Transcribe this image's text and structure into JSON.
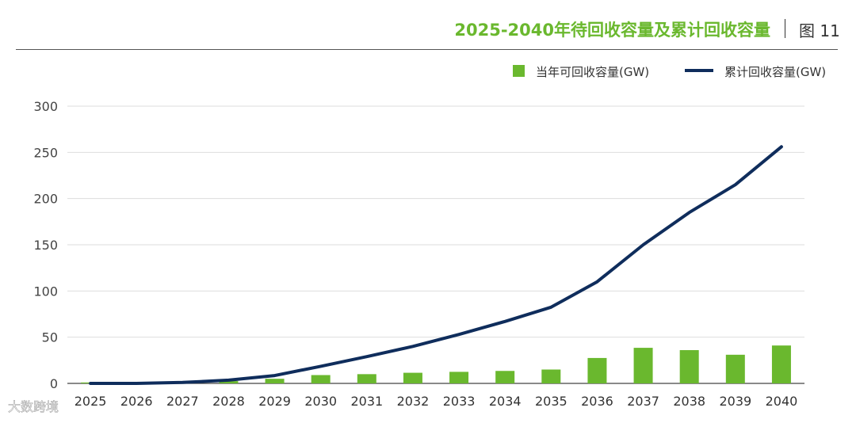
{
  "header": {
    "title": "2025-2040年待回收容量及累计回收容量",
    "figure_label": "图 11"
  },
  "watermark": {
    "text": "大数跨境"
  },
  "colors": {
    "bar": "#6ab82e",
    "line": "#0f2d5c",
    "title": "#6ab82e"
  },
  "chart_data": {
    "type": "bar",
    "title": "2025-2040年待回收容量及累计回收容量",
    "categories": [
      "2025",
      "2026",
      "2027",
      "2028",
      "2029",
      "2030",
      "2031",
      "2032",
      "2033",
      "2034",
      "2035",
      "2036",
      "2037",
      "2038",
      "2039",
      "2040"
    ],
    "series": [
      {
        "name": "当年可回收容量(GW)",
        "type": "bar",
        "values": [
          1,
          0.5,
          1.5,
          2.5,
          5,
          9,
          10,
          11.5,
          12.5,
          13.5,
          15,
          27.5,
          38.5,
          36,
          31,
          41
        ]
      },
      {
        "name": "累计回收容量(GW)",
        "type": "line",
        "values": [
          0,
          0,
          1,
          3.5,
          8.5,
          18.5,
          29,
          40,
          53,
          67,
          82.5,
          110,
          150,
          185,
          215,
          256
        ]
      }
    ],
    "yticks": [
      "0",
      "50",
      "100",
      "150",
      "200",
      "250",
      "300"
    ],
    "ylim": [
      0,
      300
    ],
    "xlabel": "",
    "ylabel": "",
    "grid": true,
    "legend": "top-right"
  }
}
